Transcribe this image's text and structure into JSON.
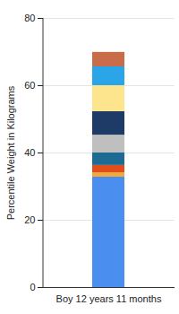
{
  "chart_data": {
    "type": "bar",
    "stacked": true,
    "grid": true,
    "ylabel": "Percentile Weight in Kilograms",
    "categories": [
      "Boy 12 years 11 months"
    ],
    "ylim": [
      0,
      80
    ],
    "yticks": [
      0,
      20,
      40,
      60,
      80
    ],
    "series": [
      {
        "color": "#4a8ef0",
        "values": [
          32.8
        ]
      },
      {
        "color": "#f2a93b",
        "values": [
          1.3
        ]
      },
      {
        "color": "#e04e1b",
        "values": [
          2.2
        ]
      },
      {
        "color": "#1d6a93",
        "values": [
          3.7
        ]
      },
      {
        "color": "#bfbfbf",
        "values": [
          5.3
        ]
      },
      {
        "color": "#1e3a66",
        "values": [
          7.0
        ]
      },
      {
        "color": "#fde58e",
        "values": [
          7.7
        ]
      },
      {
        "color": "#2aa5e8",
        "values": [
          5.6
        ]
      },
      {
        "color": "#c96c4a",
        "values": [
          4.3
        ]
      }
    ]
  }
}
